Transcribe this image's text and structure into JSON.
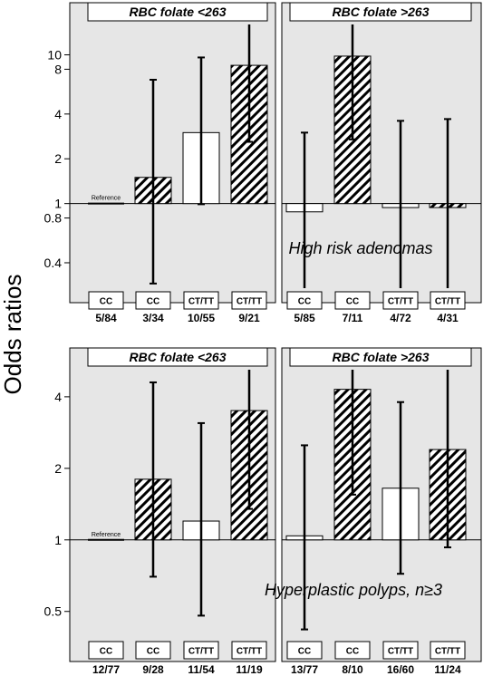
{
  "y_axis_label": "Odds ratios",
  "chart_data": [
    {
      "type": "bar",
      "annotation": "High risk adenomas",
      "y_scale": "log",
      "ylim": [
        0.27,
        16
      ],
      "y_ticks": [
        0.4,
        0.8,
        1,
        2,
        4,
        8,
        10
      ],
      "reference_line": 1,
      "reference_label": "Reference",
      "panels": [
        "RBC folate <263",
        "RBC folate >263"
      ],
      "bars": [
        {
          "panel": "RBC folate <263",
          "genotype": "CC",
          "count": "5/84",
          "or": 1.0,
          "ci": [
            1.0,
            1.0
          ],
          "fill": "reference"
        },
        {
          "panel": "RBC folate <263",
          "genotype": "CC",
          "count": "3/34",
          "or": 1.5,
          "ci": [
            0.29,
            6.8
          ],
          "fill": "hatched"
        },
        {
          "panel": "RBC folate <263",
          "genotype": "CT/TT",
          "count": "10/55",
          "or": 3.0,
          "ci": [
            0.99,
            9.6
          ],
          "fill": "open"
        },
        {
          "panel": "RBC folate <263",
          "genotype": "CT/TT",
          "count": "9/21",
          "or": 8.5,
          "ci": [
            2.6,
            16
          ],
          "fill": "hatched"
        },
        {
          "panel": "RBC folate >263",
          "genotype": "CC",
          "count": "5/85",
          "or": 0.88,
          "ci": [
            0.27,
            3.0
          ],
          "fill": "open"
        },
        {
          "panel": "RBC folate >263",
          "genotype": "CC",
          "count": "7/11",
          "or": 9.8,
          "ci": [
            2.7,
            16
          ],
          "fill": "hatched"
        },
        {
          "panel": "RBC folate >263",
          "genotype": "CT/TT",
          "count": "4/72",
          "or": 0.94,
          "ci": [
            0.27,
            3.6
          ],
          "fill": "open"
        },
        {
          "panel": "RBC folate >263",
          "genotype": "CT/TT",
          "count": "4/31",
          "or": 0.94,
          "ci": [
            0.27,
            3.7
          ],
          "fill": "hatched"
        }
      ]
    },
    {
      "type": "bar",
      "annotation": "Hyperplastic polyps, n≥3",
      "y_scale": "log",
      "ylim": [
        0.38,
        5.2
      ],
      "y_ticks": [
        0.5,
        1,
        2,
        4
      ],
      "reference_line": 1,
      "reference_label": "Reference",
      "panels": [
        "RBC folate <263",
        "RBC folate >263"
      ],
      "bars": [
        {
          "panel": "RBC folate <263",
          "genotype": "CC",
          "count": "12/77",
          "or": 1.0,
          "ci": [
            1.0,
            1.0
          ],
          "fill": "reference"
        },
        {
          "panel": "RBC folate <263",
          "genotype": "CC",
          "count": "9/28",
          "or": 1.8,
          "ci": [
            0.7,
            4.6
          ],
          "fill": "hatched"
        },
        {
          "panel": "RBC folate <263",
          "genotype": "CT/TT",
          "count": "11/54",
          "or": 1.2,
          "ci": [
            0.48,
            3.1
          ],
          "fill": "open"
        },
        {
          "panel": "RBC folate <263",
          "genotype": "CT/TT",
          "count": "11/19",
          "or": 3.5,
          "ci": [
            1.35,
            5.2
          ],
          "fill": "hatched"
        },
        {
          "panel": "RBC folate >263",
          "genotype": "CC",
          "count": "13/77",
          "or": 1.04,
          "ci": [
            0.42,
            2.5
          ],
          "fill": "open"
        },
        {
          "panel": "RBC folate >263",
          "genotype": "CC",
          "count": "8/10",
          "or": 4.3,
          "ci": [
            1.55,
            5.2
          ],
          "fill": "hatched"
        },
        {
          "panel": "RBC folate >263",
          "genotype": "CT/TT",
          "count": "16/60",
          "or": 1.65,
          "ci": [
            0.72,
            3.8
          ],
          "fill": "open"
        },
        {
          "panel": "RBC folate >263",
          "genotype": "CT/TT",
          "count": "11/24",
          "or": 2.4,
          "ci": [
            0.93,
            5.2
          ],
          "fill": "hatched"
        }
      ]
    }
  ]
}
